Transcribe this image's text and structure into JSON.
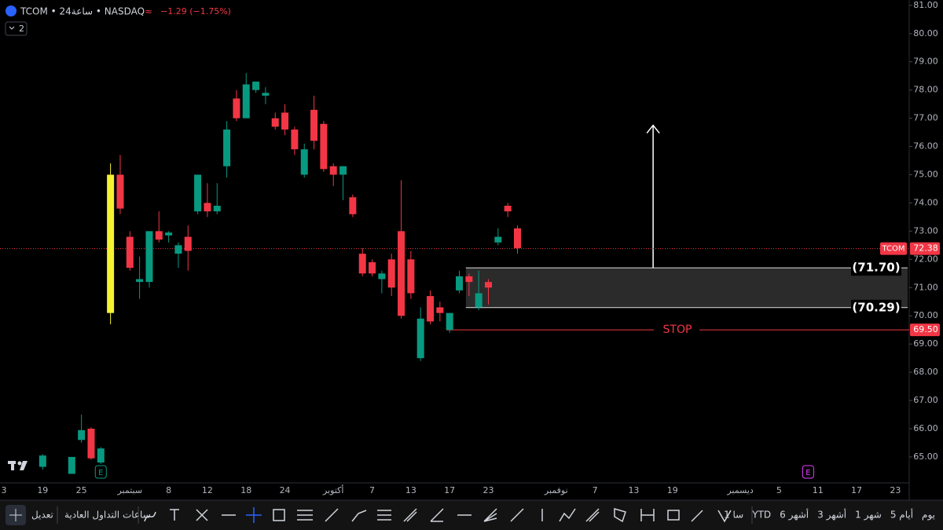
{
  "header": {
    "symbol": "TCOM • 24ساعة • NASDAQ",
    "change": "−1.29 (−1.75%)",
    "badge": "2"
  },
  "toolbar": {
    "edit": "تعديل",
    "session": "ساعات التداول العادية",
    "ranges": [
      "يوم",
      "5 أيام",
      "1 شهر",
      "3 أشهر",
      "6 أشهر",
      "YTD",
      "1 سا"
    ]
  },
  "chart_data": {
    "type": "candlestick",
    "categories": [
      "3",
      null,
      null,
      null,
      "19",
      null,
      null,
      null,
      "25",
      null,
      null,
      null,
      null,
      "سبتمبر",
      null,
      null,
      null,
      "8",
      null,
      null,
      null,
      "12",
      null,
      null,
      null,
      "18",
      null,
      null,
      null,
      "24",
      null,
      null,
      null,
      null,
      "أكتوبر",
      null,
      null,
      null,
      "7",
      null,
      null,
      null,
      "13",
      null,
      null,
      null,
      "17",
      null,
      null,
      null,
      "23",
      null,
      null,
      null,
      null,
      null,
      null,
      "نوفمبر",
      null,
      null,
      null,
      "7",
      null,
      null,
      null,
      "13",
      null,
      null,
      null,
      "19",
      null,
      null,
      null,
      null,
      null,
      null,
      "ديسمبر",
      null,
      null,
      null,
      "5",
      null,
      null,
      null,
      "11",
      null,
      null,
      null,
      "17",
      null,
      null,
      null,
      "23",
      null
    ],
    "open": [
      null,
      null,
      null,
      null,
      64.65,
      null,
      null,
      64.4,
      65.6,
      66.0,
      64.8,
      70.1,
      75.0,
      72.8,
      71.2,
      71.2,
      73.0,
      72.85,
      72.2,
      72.8,
      73.7,
      74.0,
      73.7,
      75.3,
      77.7,
      77.0,
      78.0,
      77.8,
      77.0,
      77.2,
      76.6,
      75.0,
      77.3,
      76.8,
      75.3,
      75.0,
      74.2,
      72.2,
      71.9,
      71.3,
      72.0,
      73.0,
      72.0,
      68.5,
      70.7,
      70.3,
      69.5,
      70.9,
      71.4,
      70.3,
      71.2,
      72.6,
      73.9,
      73.1,
      null,
      null,
      null,
      null,
      null,
      null,
      null,
      null,
      null,
      null,
      null,
      null,
      null,
      null,
      null,
      null,
      null,
      null,
      null,
      null,
      null,
      null,
      null,
      null,
      null,
      null,
      null,
      null,
      null,
      null,
      null,
      null,
      null,
      null,
      null,
      null,
      null,
      null,
      null,
      null
    ],
    "high": [
      null,
      null,
      null,
      null,
      65.1,
      null,
      null,
      65.0,
      66.5,
      66.05,
      65.35,
      75.4,
      75.7,
      73.0,
      72.1,
      73.0,
      73.7,
      73.0,
      72.6,
      73.2,
      75.0,
      74.7,
      74.7,
      76.9,
      78.0,
      78.6,
      78.3,
      78.1,
      77.2,
      77.5,
      76.7,
      76.1,
      77.8,
      76.9,
      75.4,
      75.3,
      74.3,
      72.4,
      72.0,
      71.6,
      72.2,
      74.8,
      72.3,
      70.3,
      70.9,
      70.5,
      70.1,
      71.6,
      71.5,
      71.6,
      71.3,
      73.1,
      74.0,
      73.2,
      null,
      null,
      null,
      null,
      null,
      null,
      null,
      null,
      null,
      null,
      null,
      null,
      null,
      null,
      null,
      null,
      null,
      null,
      null,
      null,
      null,
      null,
      null,
      null,
      null,
      null,
      null,
      null,
      null,
      null,
      null,
      null,
      null,
      null,
      null,
      null,
      null,
      null,
      null,
      null
    ],
    "low": [
      null,
      null,
      null,
      null,
      64.55,
      null,
      null,
      64.4,
      65.5,
      64.9,
      64.75,
      69.7,
      73.6,
      71.6,
      70.6,
      71.0,
      72.6,
      72.6,
      71.7,
      71.6,
      73.6,
      73.5,
      73.6,
      74.9,
      76.9,
      77.0,
      77.9,
      77.5,
      76.6,
      76.4,
      75.7,
      74.9,
      75.9,
      75.1,
      74.6,
      74.1,
      73.5,
      71.4,
      71.4,
      70.8,
      70.7,
      69.9,
      70.6,
      68.4,
      69.7,
      69.8,
      69.4,
      70.8,
      70.7,
      70.2,
      70.4,
      72.5,
      73.5,
      72.2,
      null,
      null,
      null,
      null,
      null,
      null,
      null,
      null,
      null,
      null,
      null,
      null,
      null,
      null,
      null,
      null,
      null,
      null,
      null,
      null,
      null,
      null,
      null,
      null,
      null,
      null,
      null,
      null,
      null,
      null,
      null,
      null,
      null,
      null,
      null,
      null,
      null,
      null,
      null,
      null
    ],
    "close": [
      null,
      null,
      null,
      null,
      65.05,
      null,
      null,
      65.0,
      65.95,
      64.95,
      65.3,
      75.0,
      73.8,
      71.7,
      71.3,
      73.0,
      72.7,
      72.95,
      72.5,
      72.3,
      75.0,
      73.7,
      73.9,
      76.6,
      77.0,
      78.2,
      78.3,
      77.9,
      76.7,
      76.6,
      75.9,
      75.9,
      76.2,
      75.2,
      75.0,
      75.3,
      73.6,
      71.5,
      71.5,
      71.5,
      71.0,
      70.0,
      70.8,
      69.9,
      69.8,
      70.1,
      70.1,
      71.4,
      71.2,
      70.8,
      71.0,
      72.8,
      73.7,
      72.4,
      null,
      null,
      null,
      null,
      null,
      null,
      null,
      null,
      null,
      null,
      null,
      null,
      null,
      null,
      null,
      null,
      null,
      null,
      null,
      null,
      null,
      null,
      null,
      null,
      null,
      null,
      null,
      null,
      null,
      null,
      null,
      null,
      null,
      null,
      null,
      null,
      null,
      null,
      null,
      null
    ],
    "up_color": "#089981",
    "down_color": "#f23645",
    "highlight": {
      "index": 11,
      "color": "#f5f233"
    },
    "ylim": [
      64.08,
      81.19
    ],
    "yticks": [
      {
        "value": 65,
        "label": "65.00"
      },
      {
        "value": 66,
        "label": "66.00"
      },
      {
        "value": 67,
        "label": "67.00"
      },
      {
        "value": 68,
        "label": "68.00"
      },
      {
        "value": 69,
        "label": "69.00"
      },
      {
        "value": 70,
        "label": "70.00"
      },
      {
        "value": 71,
        "label": "71.00"
      },
      {
        "value": 72,
        "label": "72.00"
      },
      {
        "value": 73,
        "label": "73.00"
      },
      {
        "value": 74,
        "label": "74.00"
      },
      {
        "value": 75,
        "label": "75.00"
      },
      {
        "value": 76,
        "label": "76.00"
      },
      {
        "value": 77,
        "label": "77.00"
      },
      {
        "value": 78,
        "label": "78.00"
      },
      {
        "value": 79,
        "label": "79.00"
      },
      {
        "value": 80,
        "label": "80.00"
      },
      {
        "value": 81,
        "label": "81.00"
      }
    ],
    "grid": false,
    "last_price": {
      "value": 72.38,
      "label": "72.38",
      "tag": "TCOM",
      "color": "#f23645"
    },
    "zone": {
      "x_start": 48,
      "top": 71.7,
      "bottom": 70.29,
      "top_label": "(71.70)",
      "bottom_label": "(70.29)"
    },
    "stop": {
      "x_start": 46,
      "value": 69.5,
      "label": "69.50",
      "text": "STOP",
      "color": "#f23645"
    },
    "arrow": {
      "x": 67,
      "from": 71.7,
      "to": 76.75
    },
    "markers": [
      {
        "index": 10,
        "label": "E",
        "color": "#089981"
      },
      {
        "index": 83,
        "label": "E",
        "color": "#e040fb"
      }
    ]
  }
}
